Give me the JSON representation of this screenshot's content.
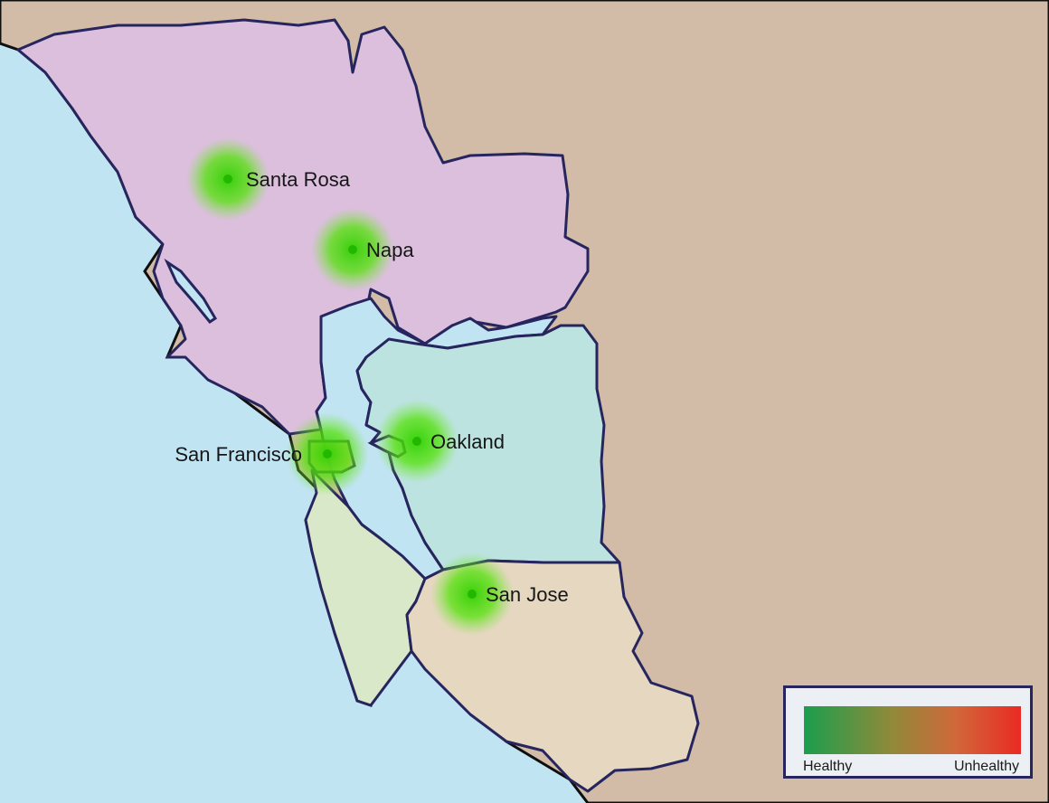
{
  "colors": {
    "ocean": "#c1e4f3",
    "land": "#d2bca8",
    "border": "#27255e",
    "north_region": "#dbbfdd",
    "east_region": "#bce3df",
    "peninsula_region": "#d9e8c8",
    "south_region": "#e6d7c1",
    "health_good": "#1b9e4e",
    "health_bad": "#ea2a24",
    "city_glow": "#3fe000"
  },
  "cities": [
    {
      "name": "Santa Rosa",
      "status": "healthy"
    },
    {
      "name": "Napa",
      "status": "healthy"
    },
    {
      "name": "San Francisco",
      "status": "healthy"
    },
    {
      "name": "Oakland",
      "status": "healthy"
    },
    {
      "name": "San Jose",
      "status": "healthy"
    }
  ],
  "legend": {
    "low_label": "Healthy",
    "high_label": "Unhealthy"
  }
}
